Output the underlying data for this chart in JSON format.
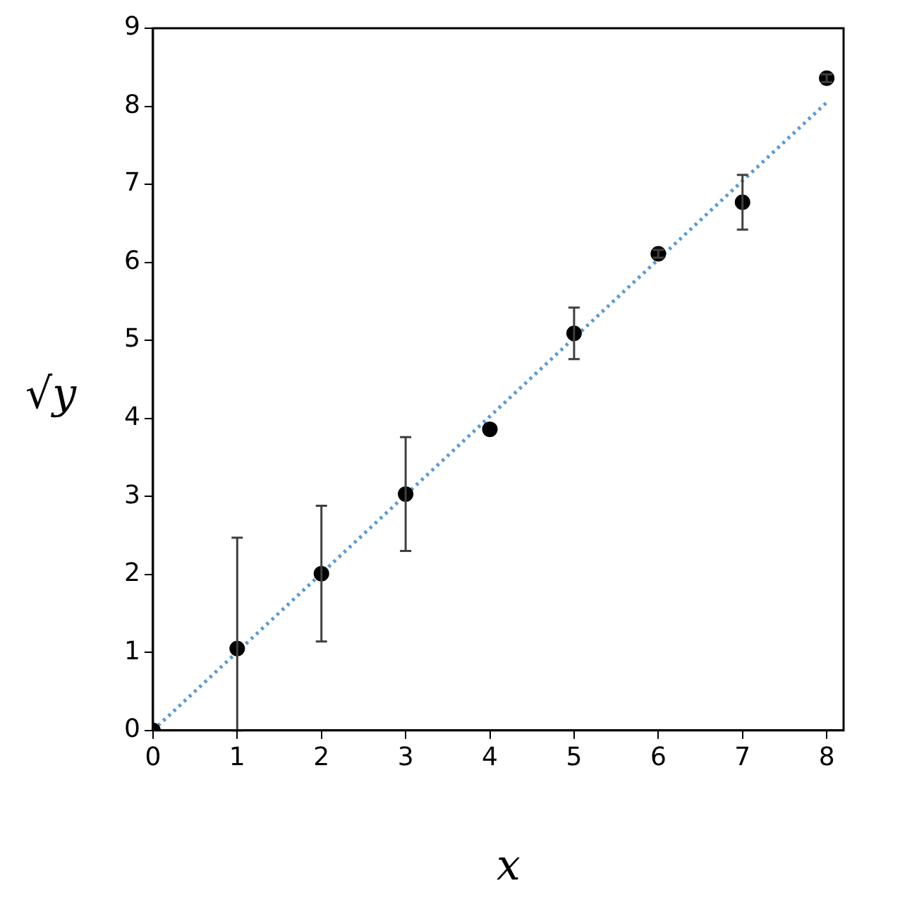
{
  "chart_data": {
    "type": "scatter",
    "xlabel": "x",
    "ylabel": "√y",
    "xlim": [
      0,
      8.2
    ],
    "ylim": [
      0,
      9
    ],
    "xticks": [
      0,
      1,
      2,
      3,
      4,
      5,
      6,
      7,
      8
    ],
    "yticks": [
      0,
      1,
      2,
      3,
      4,
      5,
      6,
      7,
      8,
      9
    ],
    "grid": false,
    "legend": false,
    "series": [
      {
        "type": "scatter",
        "color": "#000000",
        "marker": "circle",
        "x": [
          0,
          1,
          2,
          3,
          4,
          5,
          6,
          7,
          8
        ],
        "values": [
          0,
          1.05,
          2.01,
          3.03,
          3.86,
          5.09,
          6.11,
          6.77,
          8.36
        ],
        "errors": [
          null,
          [
            0,
            2.47
          ],
          0.87,
          0.73,
          null,
          0.33,
          0.05,
          0.35,
          0.05
        ]
      },
      {
        "type": "line",
        "color": "#5b9bd5",
        "line_style": "dotted",
        "marker": "none",
        "x": [
          0,
          8
        ],
        "values": [
          0,
          8.05
        ]
      }
    ]
  }
}
